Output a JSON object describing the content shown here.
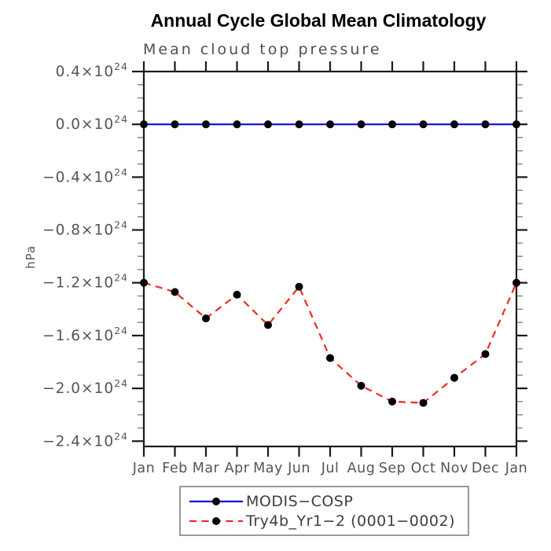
{
  "chart_data": {
    "type": "line",
    "title": "Annual Cycle Global Mean Climatology",
    "subtitle": "Mean cloud top pressure",
    "ylabel": "hPa",
    "times_prefix": "×10",
    "exponent": "24",
    "categories": [
      "Jan",
      "Feb",
      "Mar",
      "Apr",
      "May",
      "Jun",
      "Jul",
      "Aug",
      "Sep",
      "Oct",
      "Nov",
      "Dec",
      "Jan"
    ],
    "y_ticks": [
      0.4,
      0.0,
      -0.4,
      -0.8,
      -1.2,
      -1.6,
      -2.0,
      -2.4
    ],
    "ylim": [
      -2.44,
      0.4
    ],
    "minor_tick_step": 0.1,
    "grid": false,
    "legend_position": "bottom",
    "marker": {
      "shape": "circle",
      "color": "#000000",
      "radius": 5
    },
    "series": [
      {
        "name": "MODIS−COSP",
        "color": "#0808e8",
        "line_style": "solid",
        "values": [
          0.0,
          0.0,
          0.0,
          0.0,
          0.0,
          0.0,
          0.0,
          0.0,
          0.0,
          0.0,
          0.0,
          0.0,
          0.0
        ]
      },
      {
        "name": "Try4b_Yr1−2 (0001−0002)",
        "color": "#ee2c21",
        "line_style": "dashed",
        "values": [
          -1.2,
          -1.27,
          -1.47,
          -1.29,
          -1.52,
          -1.23,
          -1.77,
          -1.98,
          -2.1,
          -2.11,
          -1.92,
          -1.74,
          -1.2
        ]
      }
    ]
  },
  "colors": {
    "axis": "#1a1a1a",
    "minor_tick": "#909090",
    "tick_label": "#555555",
    "legend_border": "#9a9a9a"
  }
}
